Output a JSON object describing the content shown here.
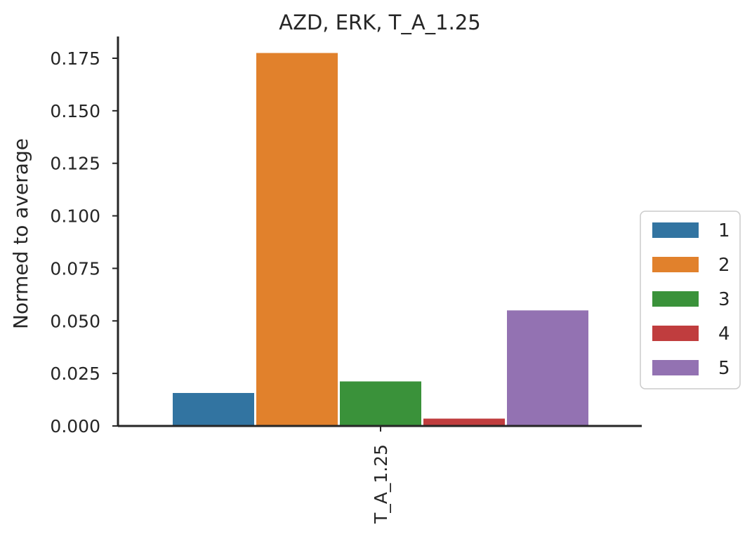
{
  "chart_data": {
    "type": "bar",
    "title": "AZD, ERK, T_A_1.25",
    "xlabel": "",
    "ylabel": "Normed to average",
    "categories": [
      "T_A_1.25"
    ],
    "ylim": [
      0,
      0.1875
    ],
    "yticks": [
      "0.000",
      "0.025",
      "0.050",
      "0.075",
      "0.100",
      "0.125",
      "0.150",
      "0.175"
    ],
    "grid": false,
    "legend_position": "center-right outside",
    "series": [
      {
        "name": "1",
        "color": "#3274a1",
        "values": [
          0.0157
        ]
      },
      {
        "name": "2",
        "color": "#e1812c",
        "values": [
          0.1775
        ]
      },
      {
        "name": "3",
        "color": "#3a923a",
        "values": [
          0.0212
        ]
      },
      {
        "name": "4",
        "color": "#c03d3e",
        "values": [
          0.0035
        ]
      },
      {
        "name": "5",
        "color": "#9372b2",
        "values": [
          0.055
        ]
      }
    ]
  }
}
